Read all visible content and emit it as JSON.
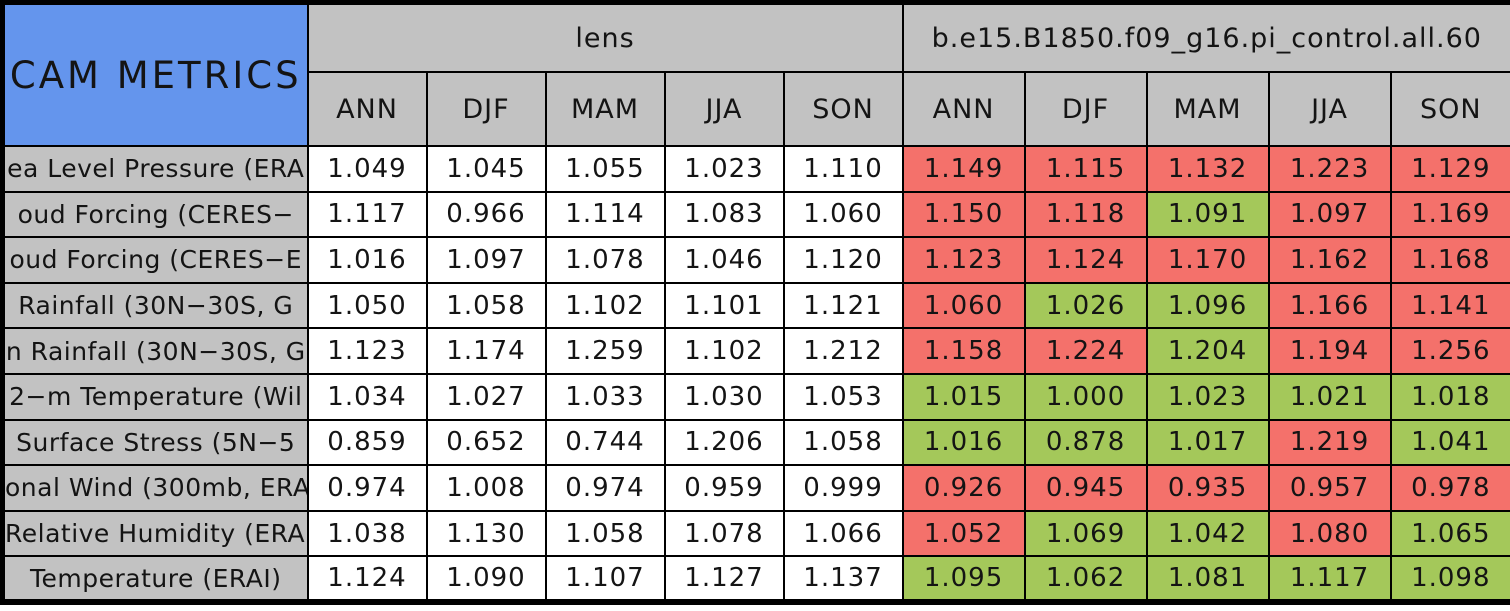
{
  "chart_data": {
    "type": "table",
    "title": "CAM METRICS",
    "column_groups": [
      "lens",
      "b.e15.B1850.f09_g16.pi_control.all.60"
    ],
    "seasons": [
      "ANN",
      "DJF",
      "MAM",
      "JJA",
      "SON"
    ],
    "rows": [
      {
        "metric": "ea Level Pressure (ERA",
        "lens": [
          "1.049",
          "1.045",
          "1.055",
          "1.023",
          "1.110"
        ],
        "control": [
          "1.149",
          "1.115",
          "1.132",
          "1.223",
          "1.129"
        ],
        "control_colors": [
          "red",
          "red",
          "red",
          "red",
          "red"
        ]
      },
      {
        "metric": "oud Forcing (CERES−",
        "lens": [
          "1.117",
          "0.966",
          "1.114",
          "1.083",
          "1.060"
        ],
        "control": [
          "1.150",
          "1.118",
          "1.091",
          "1.097",
          "1.169"
        ],
        "control_colors": [
          "red",
          "red",
          "green",
          "red",
          "red"
        ]
      },
      {
        "metric": "oud Forcing (CERES−E",
        "lens": [
          "1.016",
          "1.097",
          "1.078",
          "1.046",
          "1.120"
        ],
        "control": [
          "1.123",
          "1.124",
          "1.170",
          "1.162",
          "1.168"
        ],
        "control_colors": [
          "red",
          "red",
          "red",
          "red",
          "red"
        ]
      },
      {
        "metric": "Rainfall (30N−30S, G",
        "lens": [
          "1.050",
          "1.058",
          "1.102",
          "1.101",
          "1.121"
        ],
        "control": [
          "1.060",
          "1.026",
          "1.096",
          "1.166",
          "1.141"
        ],
        "control_colors": [
          "red",
          "green",
          "green",
          "red",
          "red"
        ]
      },
      {
        "metric": "n Rainfall (30N−30S, G",
        "lens": [
          "1.123",
          "1.174",
          "1.259",
          "1.102",
          "1.212"
        ],
        "control": [
          "1.158",
          "1.224",
          "1.204",
          "1.194",
          "1.256"
        ],
        "control_colors": [
          "red",
          "red",
          "green",
          "red",
          "red"
        ]
      },
      {
        "metric": "2−m Temperature (Wil",
        "lens": [
          "1.034",
          "1.027",
          "1.033",
          "1.030",
          "1.053"
        ],
        "control": [
          "1.015",
          "1.000",
          "1.023",
          "1.021",
          "1.018"
        ],
        "control_colors": [
          "green",
          "green",
          "green",
          "green",
          "green"
        ]
      },
      {
        "metric": "Surface Stress (5N−5",
        "lens": [
          "0.859",
          "0.652",
          "0.744",
          "1.206",
          "1.058"
        ],
        "control": [
          "1.016",
          "0.878",
          "1.017",
          "1.219",
          "1.041"
        ],
        "control_colors": [
          "green",
          "green",
          "green",
          "red",
          "green"
        ]
      },
      {
        "metric": "onal Wind (300mb, ERA",
        "lens": [
          "0.974",
          "1.008",
          "0.974",
          "0.959",
          "0.999"
        ],
        "control": [
          "0.926",
          "0.945",
          "0.935",
          "0.957",
          "0.978"
        ],
        "control_colors": [
          "red",
          "red",
          "red",
          "red",
          "red"
        ]
      },
      {
        "metric": "Relative Humidity (ERAI",
        "lens": [
          "1.038",
          "1.130",
          "1.058",
          "1.078",
          "1.066"
        ],
        "control": [
          "1.052",
          "1.069",
          "1.042",
          "1.080",
          "1.065"
        ],
        "control_colors": [
          "red",
          "green",
          "green",
          "red",
          "green"
        ]
      },
      {
        "metric": "Temperature (ERAI)",
        "lens": [
          "1.124",
          "1.090",
          "1.107",
          "1.127",
          "1.137"
        ],
        "control": [
          "1.095",
          "1.062",
          "1.081",
          "1.117",
          "1.098"
        ],
        "control_colors": [
          "green",
          "green",
          "green",
          "green",
          "green"
        ]
      }
    ]
  },
  "colors": {
    "title_cell_blue": "#6495ED",
    "header_gray": "#C2C2C2",
    "worse_red": "#F4716B",
    "better_green": "#A4C85A",
    "lens_cell_white": "#FFFFFF",
    "border_black": "#000000"
  }
}
